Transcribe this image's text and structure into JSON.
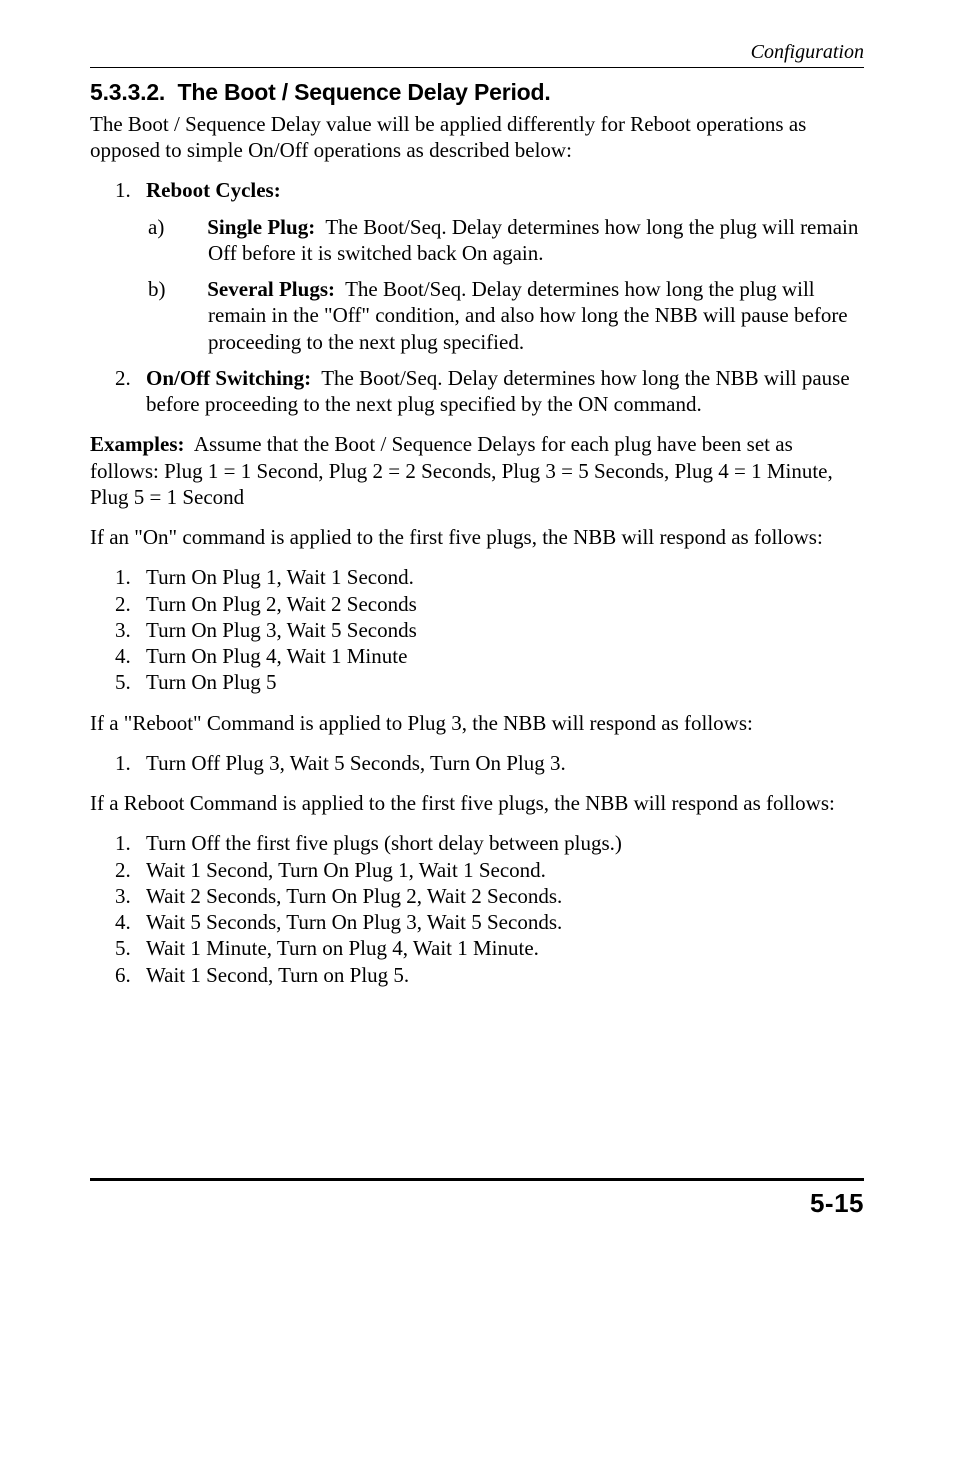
{
  "runningHead": "Configuration",
  "section": {
    "number": "5.3.3.2.",
    "title": "The Boot / Sequence Delay Period."
  },
  "intro": "The Boot / Sequence Delay value will be applied differently for Reboot operations as opposed to simple On/Off operations as described below:",
  "list1": {
    "item1": {
      "label": "Reboot Cycles:",
      "a": {
        "label": "Single Plug:",
        "text": "The Boot/Seq. Delay determines how long the plug will remain Off before it is switched back On again."
      },
      "b": {
        "label": "Several Plugs:",
        "text": "The Boot/Seq. Delay determines how long the plug will remain in the \"Off\" condition, and also how long the NBB will pause before proceeding to the next plug specified."
      }
    },
    "item2": {
      "label": "On/Off Switching:",
      "text": "The Boot/Seq. Delay determines how long the NBB will pause before proceeding to the next plug specified by the ON command."
    }
  },
  "examplesLabel": "Examples:",
  "examplesText": "Assume that the Boot / Sequence Delays for each plug have been set as follows:  Plug 1 = 1 Second, Plug 2 = 2 Seconds, Plug 3 = 5 Seconds, Plug 4 = 1 Minute, Plug 5 = 1 Second",
  "onCmdPara": "If an \"On\" command is applied to the first five plugs, the NBB will respond as follows:",
  "onSeq": {
    "1": "Turn On Plug 1, Wait 1 Second.",
    "2": "Turn On Plug 2, Wait 2 Seconds",
    "3": "Turn On Plug 3, Wait 5 Seconds",
    "4": "Turn On Plug 4, Wait 1 Minute",
    "5": "Turn On Plug 5"
  },
  "rebootPara": "If a \"Reboot\" Command is applied to Plug 3, the NBB will respond as follows:",
  "rebootSeq": {
    "1": "Turn Off Plug 3, Wait 5 Seconds, Turn On Plug 3."
  },
  "rebootAllPara": "If a Reboot Command is applied to the first five plugs, the NBB will respond as follows:",
  "rebootAllSeq": {
    "1": "Turn Off the first five plugs (short delay between plugs.)",
    "2": "Wait 1 Second, Turn On Plug 1, Wait 1 Second.",
    "3": "Wait 2 Seconds, Turn On Plug 2, Wait 2 Seconds.",
    "4": "Wait 5 Seconds, Turn On Plug 3, Wait 5 Seconds.",
    "5": "Wait 1 Minute, Turn on Plug 4, Wait 1 Minute.",
    "6": "Wait 1 Second, Turn on Plug 5."
  },
  "pageNumber": "5-15",
  "markers": {
    "a": "a)",
    "b": "b)"
  }
}
